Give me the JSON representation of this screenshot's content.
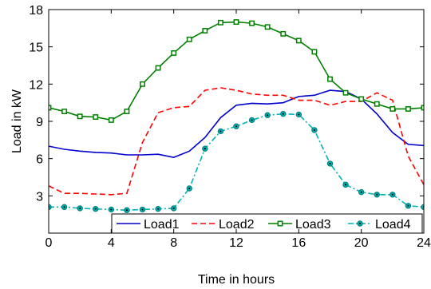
{
  "chart_data": {
    "type": "line",
    "xlabel": "Time in hours",
    "ylabel": "Load in kW",
    "xlim": [
      0,
      24
    ],
    "ylim": [
      0,
      18
    ],
    "xticks": [
      0,
      4,
      8,
      12,
      16,
      20,
      24
    ],
    "yticks": [
      3,
      6,
      9,
      12,
      15,
      18
    ],
    "grid": false,
    "legend_placement": "bottom-right",
    "x": [
      0,
      1,
      2,
      3,
      4,
      5,
      6,
      7,
      8,
      9,
      10,
      11,
      12,
      13,
      14,
      15,
      16,
      17,
      18,
      19,
      20,
      21,
      22,
      23,
      24
    ],
    "series": [
      {
        "name": "Load1",
        "color": "#0000cc",
        "style": "solid",
        "marker": "none",
        "values": [
          7.0,
          6.75,
          6.6,
          6.5,
          6.45,
          6.3,
          6.3,
          6.35,
          6.1,
          6.6,
          7.7,
          9.3,
          10.3,
          10.45,
          10.4,
          10.5,
          11.0,
          11.1,
          11.5,
          11.4,
          10.8,
          9.6,
          8.1,
          7.15,
          7.05
        ]
      },
      {
        "name": "Load2",
        "color": "#ff0000",
        "style": "dashed",
        "marker": "none",
        "values": [
          3.8,
          3.2,
          3.2,
          3.15,
          3.1,
          3.2,
          7.3,
          9.7,
          10.1,
          10.2,
          11.5,
          11.7,
          11.5,
          11.2,
          11.1,
          11.1,
          10.7,
          10.7,
          10.3,
          10.6,
          10.6,
          11.3,
          10.7,
          6.2,
          3.9
        ]
      },
      {
        "name": "Load3",
        "color": "#008000",
        "style": "solid",
        "marker": "square",
        "values": [
          10.1,
          9.8,
          9.4,
          9.35,
          9.1,
          9.8,
          12.0,
          13.3,
          14.5,
          15.6,
          16.3,
          16.95,
          17.0,
          16.9,
          16.6,
          16.05,
          15.5,
          14.6,
          12.4,
          11.3,
          10.8,
          10.4,
          10.0,
          10.0,
          10.1
        ]
      },
      {
        "name": "Load4",
        "color": "#00b3b3",
        "style": "dashdot",
        "marker": "filled-circle",
        "values": [
          2.1,
          2.1,
          2.0,
          1.95,
          1.9,
          1.85,
          1.9,
          1.95,
          2.0,
          3.6,
          6.8,
          8.2,
          8.6,
          9.1,
          9.5,
          9.6,
          9.55,
          8.3,
          5.6,
          3.9,
          3.3,
          3.1,
          3.1,
          2.2,
          2.1
        ]
      }
    ]
  }
}
